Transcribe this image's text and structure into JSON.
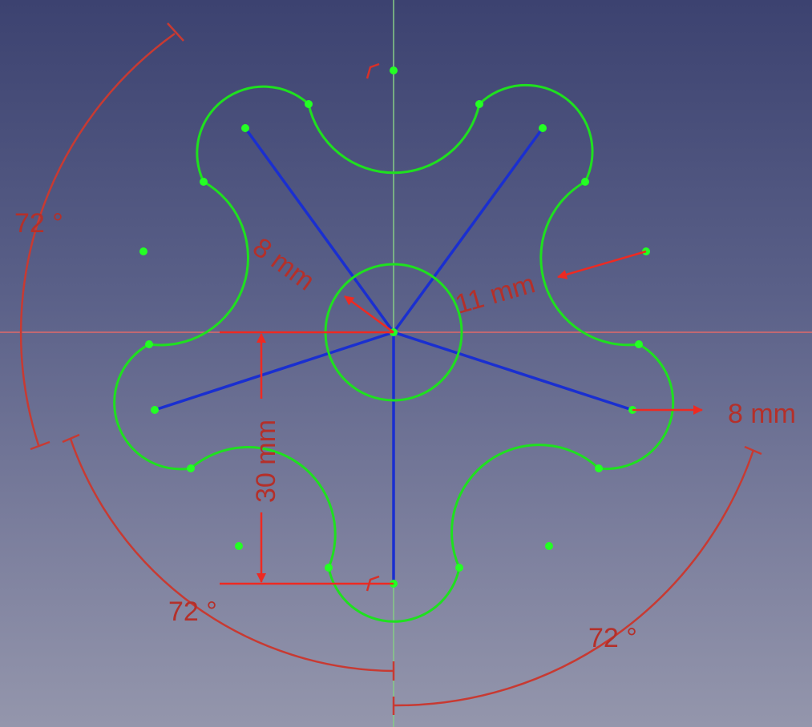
{
  "sketch": {
    "constraints": {
      "angle_left": "72 °",
      "angle_bottom_left": "72 °",
      "angle_bottom_right": "72 °",
      "radius_hub": "8 mm",
      "radius_concave": "11 mm",
      "radius_lobe": "8 mm",
      "distance_vertical": "30 mm"
    }
  },
  "colors": {
    "geometry": "#1fe01f",
    "construction": "#1a2fd0",
    "constraint": "#d83028",
    "axis_horizontal": "#e05a5a",
    "axis_vertical": "#7fd07f"
  }
}
